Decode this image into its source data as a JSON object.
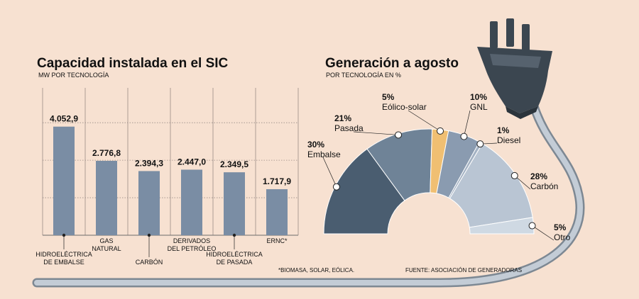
{
  "bar_chart": {
    "title": "Capacidad instalada en el SIC",
    "subtitle": "MW POR TECNOLOGÍA",
    "footnote": "*BIOMASA, SOLAR, EÓLICA."
  },
  "donut_chart": {
    "title": "Generación a agosto",
    "subtitle": "POR TECNOLOGÍA EN %",
    "source": "FUENTE: ASOCIACIÓN DE GENERADORAS"
  },
  "colors": {
    "background": "#f7e1d1",
    "bar": "#7a8da4",
    "gridline": "#9a8c86",
    "embalse": "#4a5d70",
    "pasada": "#6f8397",
    "eolico_solar": "#f0bf72",
    "gnl": "#8a9bb0",
    "diesel": "#a4b2c3",
    "carbon": "#b9c5d3",
    "otro": "#cfd9e3",
    "plug": "#3b4650",
    "cable": "#aab6c3"
  },
  "icons": [
    "power-plug-icon",
    "cable-icon"
  ],
  "chart_data": [
    {
      "type": "bar",
      "title": "Capacidad instalada en el SIC",
      "subtitle": "MW POR TECNOLOGÍA",
      "categories": [
        "HIDROELÉCTRICA\nDE EMBALSE",
        "GAS\nNATURAL",
        "CARBÓN",
        "DERIVADOS\nDEL PETRÓLEO",
        "HIDROELÉCTRICA\nDE PASADA",
        "ERNC*"
      ],
      "values": [
        4052.9,
        2776.8,
        2394.3,
        2447.0,
        2349.5,
        1717.9
      ],
      "value_labels": [
        "4.052,9",
        "2.776,8",
        "2.394,3",
        "2.447,0",
        "2.349,5",
        "1.717,9"
      ],
      "ylim": [
        0,
        5500
      ],
      "grid": true,
      "xlabel": "",
      "ylabel": ""
    },
    {
      "type": "pie",
      "title": "Generación a agosto",
      "subtitle": "POR TECNOLOGÍA EN %",
      "shape": "half-donut",
      "categories": [
        "Embalse",
        "Pasada",
        "Eólico-solar",
        "GNL",
        "Diesel",
        "Carbón",
        "Otro"
      ],
      "values": [
        30,
        21,
        5,
        10,
        1,
        28,
        5
      ],
      "value_labels": [
        "30%",
        "21%",
        "5%",
        "10%",
        "1%",
        "28%",
        "5%"
      ]
    }
  ]
}
